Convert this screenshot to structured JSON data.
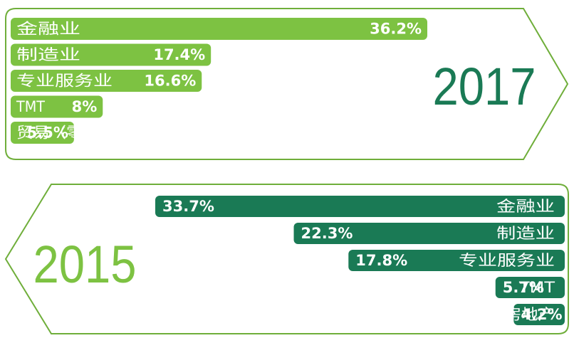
{
  "colors": {
    "light_green": "#7dc242",
    "dark_green": "#1a7a55",
    "year_2017": "#1a7a55",
    "year_2015": "#7dc242"
  },
  "chart_data": [
    {
      "type": "bar",
      "orientation": "horizontal",
      "year": "2017",
      "categories": [
        "金融业",
        "制造业",
        "专业服务业",
        "TMT",
        "贸易（零售）"
      ],
      "values": [
        36.2,
        17.4,
        16.6,
        8,
        5.5
      ],
      "value_labels": [
        "36.2%",
        "17.4%",
        "16.6%",
        "8%",
        "5.5%"
      ],
      "bar_direction": "left-to-right",
      "color": "#7dc242"
    },
    {
      "type": "bar",
      "orientation": "horizontal",
      "year": "2015",
      "categories": [
        "金融业",
        "制造业",
        "专业服务业",
        "TMT",
        "房地产"
      ],
      "values": [
        33.7,
        22.3,
        17.8,
        5.7,
        4.2
      ],
      "value_labels": [
        "33.7%",
        "22.3%",
        "17.8%",
        "5.7%",
        "4.2%"
      ],
      "bar_direction": "right-to-left",
      "color": "#1a7a55"
    }
  ]
}
